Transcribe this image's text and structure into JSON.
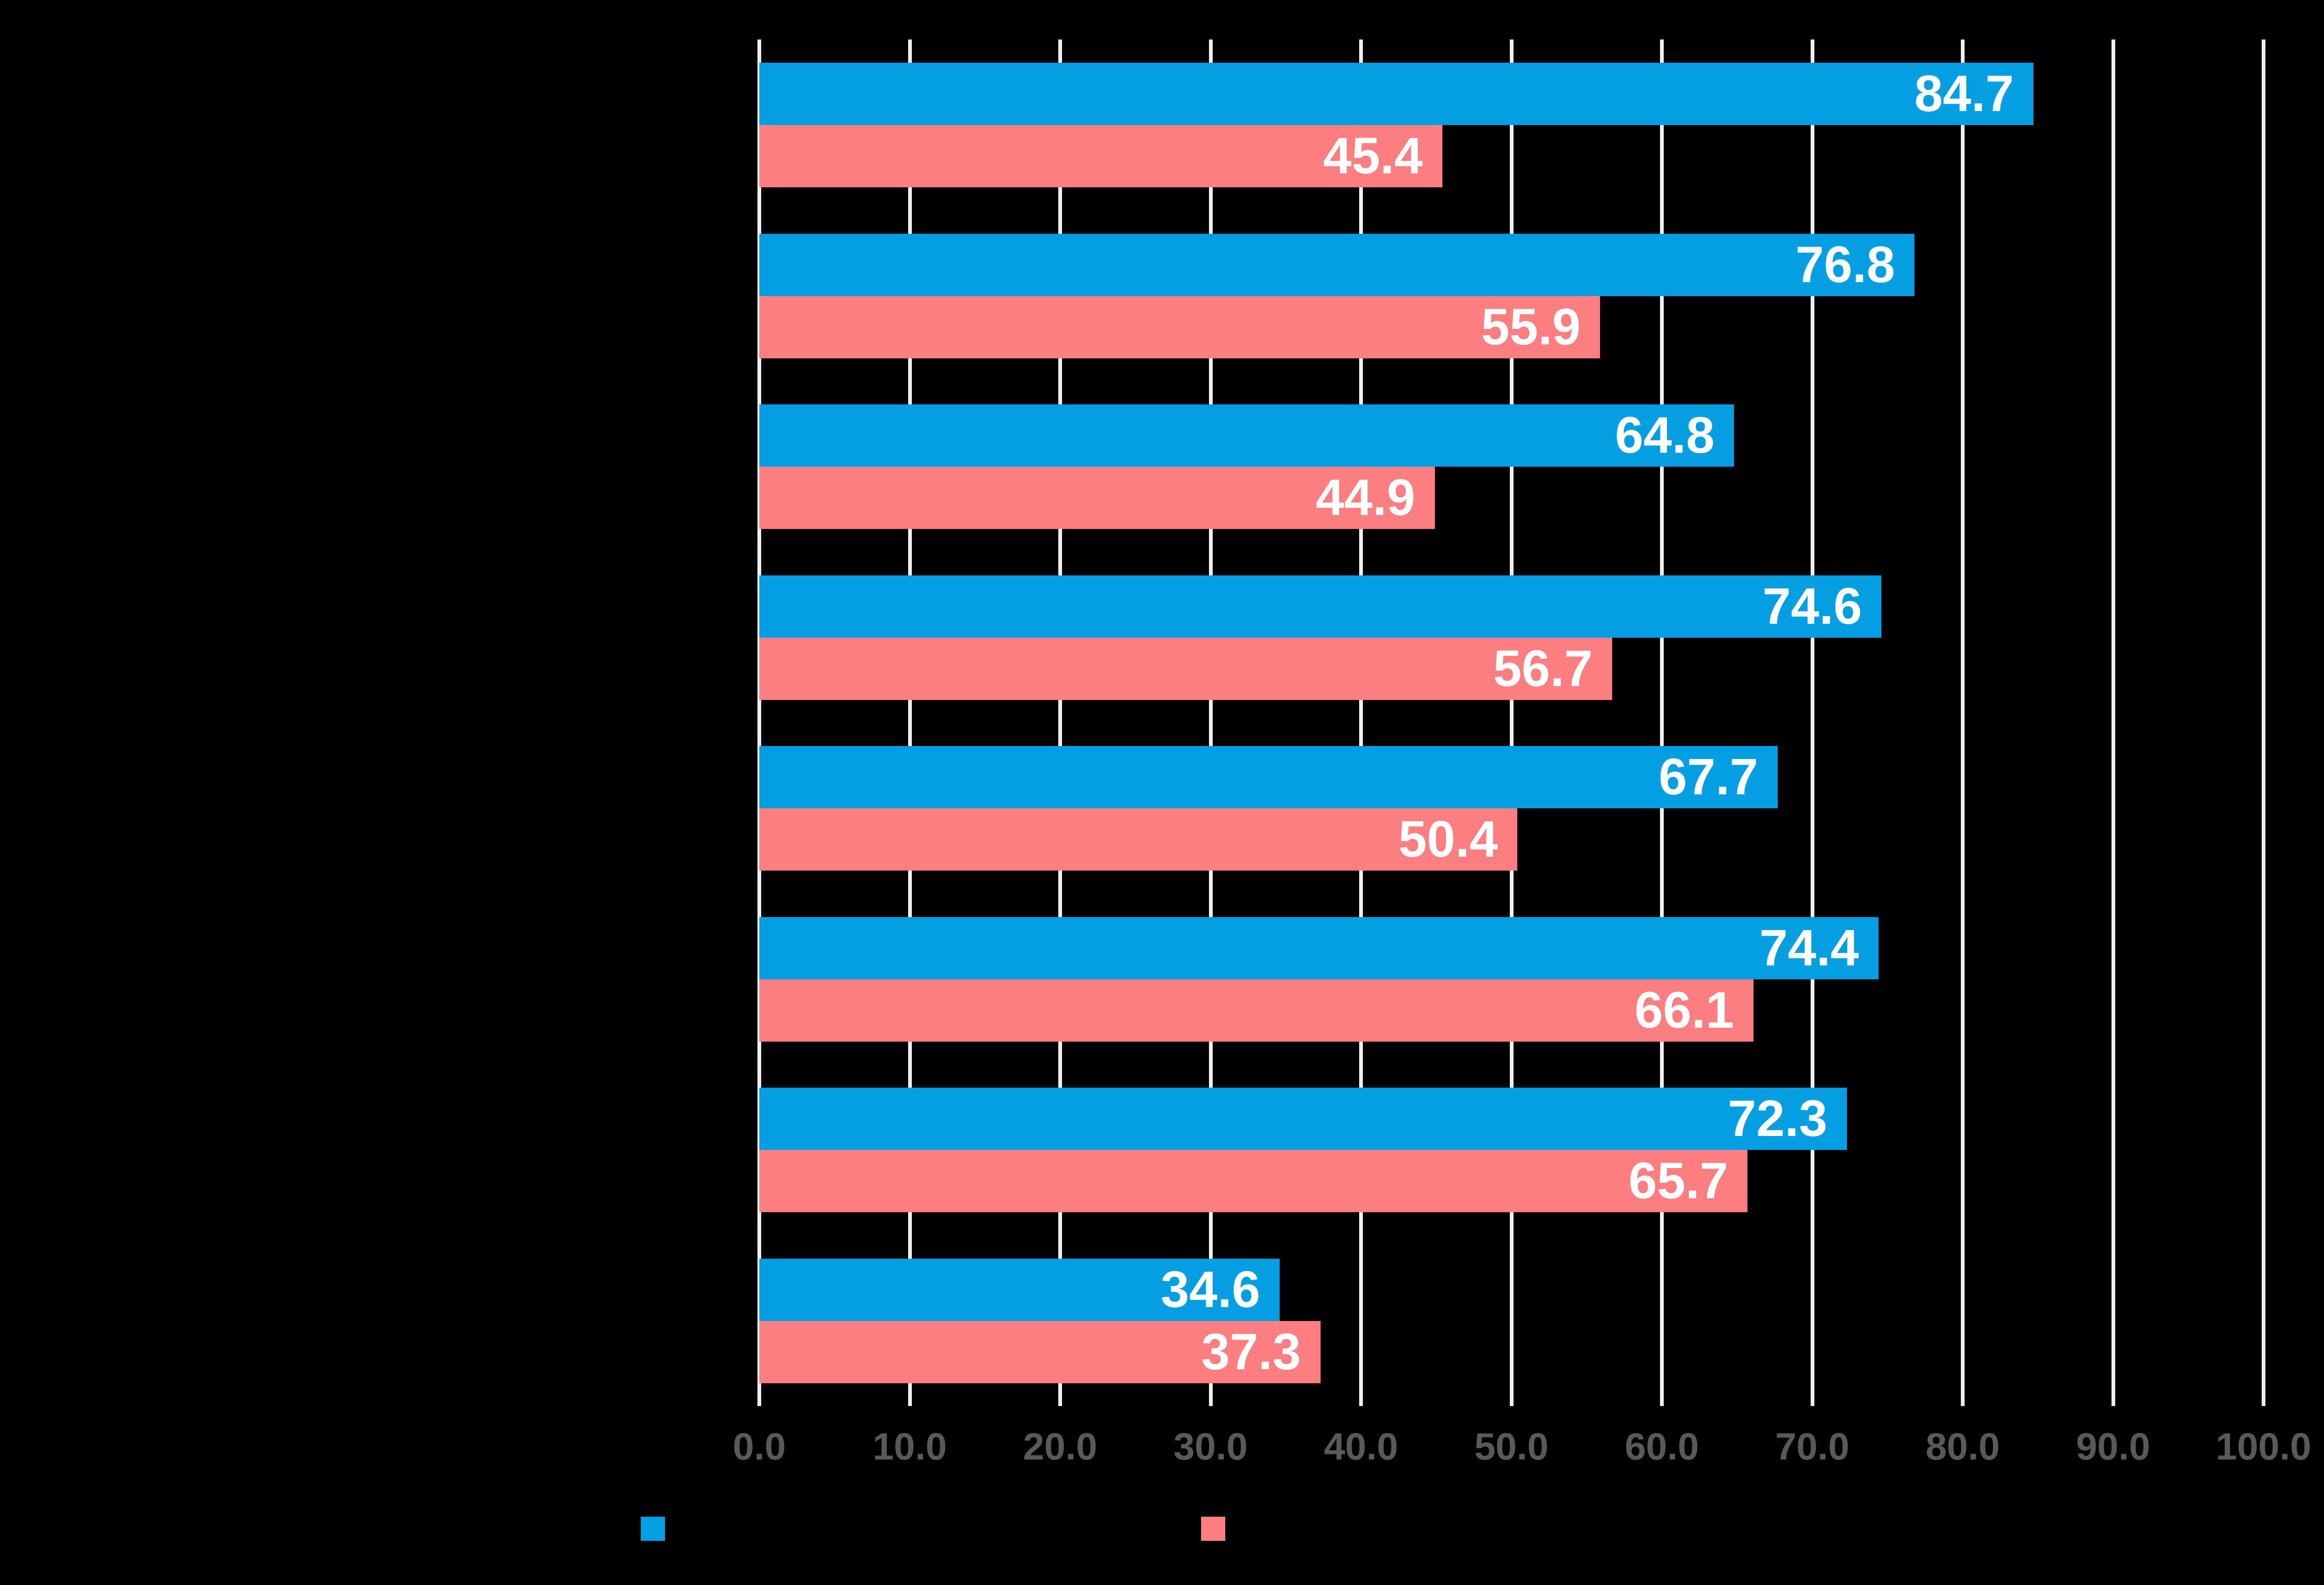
{
  "chart_data": {
    "type": "bar",
    "orientation": "horizontal",
    "title": "",
    "categories": [
      "",
      "",
      "",
      "",
      "",
      "",
      "",
      ""
    ],
    "series": [
      {
        "name": "",
        "color": "#049fe3",
        "values": [
          84.7,
          76.8,
          64.8,
          74.6,
          67.7,
          74.4,
          72.3,
          34.6
        ],
        "labels": [
          "84.7",
          "76.8",
          "64.8",
          "74.6",
          "67.7",
          "74.4",
          "72.3",
          "34.6"
        ]
      },
      {
        "name": "",
        "color": "#fc7e81",
        "values": [
          45.4,
          55.9,
          44.9,
          56.7,
          50.4,
          66.1,
          65.7,
          37.3
        ],
        "labels": [
          "45.4",
          "55.9",
          "44.9",
          "56.7",
          "50.4",
          "66.1",
          "65.7",
          "37.3"
        ]
      }
    ],
    "x_axis": {
      "min": 0,
      "max": 100,
      "tick_step": 10,
      "tick_labels": [
        "0.0",
        "10.0",
        "20.0",
        "30.0",
        "40.0",
        "50.0",
        "60.0",
        "70.0",
        "80.0",
        "90.0",
        "100.0"
      ],
      "tick_color": "#595959"
    },
    "grid": {
      "show": true,
      "color": "#efefef"
    },
    "value_label_color": "#ffffff",
    "background": "#000000",
    "legend": {
      "position": "bottom",
      "items": [
        {
          "label": "",
          "color": "#049fe3"
        },
        {
          "label": "",
          "color": "#fc7e81"
        }
      ]
    }
  }
}
